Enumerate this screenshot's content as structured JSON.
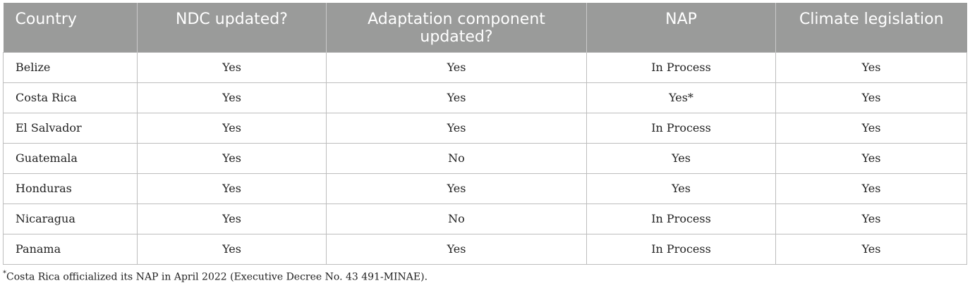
{
  "table": {
    "headers": [
      "Country",
      "NDC updated?",
      "Adaptation component updated?",
      "NAP",
      "Climate legislation"
    ],
    "rows": [
      [
        "Belize",
        "Yes",
        "Yes",
        "In Process",
        "Yes"
      ],
      [
        "Costa Rica",
        "Yes",
        "Yes",
        "Yes*",
        "Yes"
      ],
      [
        "El Salvador",
        "Yes",
        "Yes",
        "In Process",
        "Yes"
      ],
      [
        "Guatemala",
        "Yes",
        "No",
        "Yes",
        "Yes"
      ],
      [
        "Honduras",
        "Yes",
        "Yes",
        "Yes",
        "Yes"
      ],
      [
        "Nicaragua",
        "Yes",
        "No",
        "In Process",
        "Yes"
      ],
      [
        "Panama",
        "Yes",
        "Yes",
        "In Process",
        "Yes"
      ]
    ]
  },
  "footnote": {
    "marker": "*",
    "text": "Costa Rica officialized its NAP in April 2022 (Executive Decree No. 43 491-MINAE)."
  },
  "colors": {
    "header_bg": "#9a9b9a",
    "header_text": "#ffffff",
    "grid": "#bdbdbd"
  }
}
